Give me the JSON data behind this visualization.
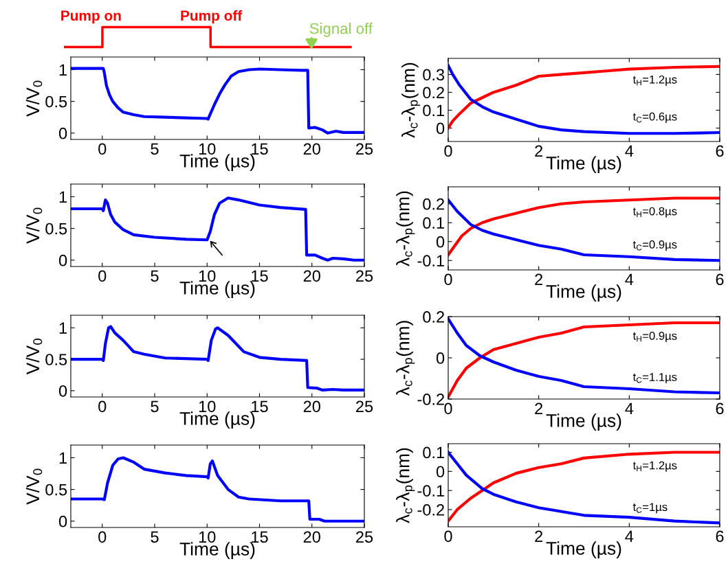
{
  "chart_data": [
    {
      "type": "other",
      "annotations": [
        "Pump on",
        "Pump off"
      ]
    },
    {
      "type": "line",
      "xlabel": "Time (µs)",
      "ylabel": "V/V$_{0}$",
      "xlim": [
        -3,
        25
      ],
      "xticks": [
        0,
        5,
        10,
        15,
        20,
        25
      ],
      "ylim": [
        -0.1,
        1.2
      ],
      "yticks": [
        0,
        0.5,
        1
      ],
      "annotations": [
        "Signal off"
      ],
      "series": [
        {
          "color": "#0000ff",
          "x": [
            -3,
            0.1,
            0.2,
            0.4,
            0.7,
            1,
            1.5,
            2,
            3,
            4,
            6,
            8,
            10,
            10.1,
            10.3,
            10.7,
            11.2,
            11.7,
            12.3,
            13,
            14,
            15,
            17,
            19,
            19.6,
            19.7,
            20.3,
            21,
            21.5,
            22.3,
            23,
            25
          ],
          "values": [
            1.02,
            1.02,
            0.95,
            0.75,
            0.6,
            0.5,
            0.4,
            0.33,
            0.29,
            0.26,
            0.25,
            0.24,
            0.23,
            0.22,
            0.3,
            0.45,
            0.62,
            0.76,
            0.9,
            0.97,
            1.0,
            1.01,
            1.0,
            0.99,
            0.99,
            0.08,
            0.09,
            0.05,
            0.0,
            0.03,
            0.01,
            0.01
          ]
        }
      ]
    },
    {
      "type": "line",
      "xlabel": "Time (µs)",
      "ylabel": "V/V$_{0}$",
      "xlim": [
        -3,
        25
      ],
      "xticks": [
        0,
        5,
        10,
        15,
        20,
        25
      ],
      "ylim": [
        -0.1,
        1.2
      ],
      "yticks": [
        0,
        0.5,
        1
      ],
      "series": [
        {
          "color": "#0000ff",
          "x": [
            -3,
            0,
            0.1,
            0.3,
            0.5,
            0.8,
            1.2,
            2,
            3,
            5,
            8,
            10,
            10.3,
            10.7,
            11.2,
            12,
            13,
            15,
            17,
            19.4,
            19.5,
            20.3,
            21,
            21.5,
            22,
            23,
            24,
            25
          ],
          "values": [
            0.81,
            0.81,
            0.78,
            0.95,
            0.9,
            0.72,
            0.6,
            0.48,
            0.4,
            0.36,
            0.33,
            0.32,
            0.45,
            0.72,
            0.9,
            0.98,
            0.95,
            0.87,
            0.83,
            0.8,
            0.08,
            0.08,
            0.03,
            0.0,
            0.03,
            0.02,
            0.0,
            0.0
          ]
        }
      ]
    },
    {
      "type": "line",
      "xlabel": "Time (µs)",
      "ylabel": "V/V$_{0}$",
      "xlim": [
        -3,
        25
      ],
      "xticks": [
        0,
        5,
        10,
        15,
        20,
        25
      ],
      "ylim": [
        -0.1,
        1.2
      ],
      "yticks": [
        0,
        0.5,
        1
      ],
      "series": [
        {
          "color": "#0000ff",
          "x": [
            -3,
            0,
            0.1,
            0.3,
            0.6,
            0.8,
            1.2,
            2,
            3,
            4,
            6,
            10,
            10.1,
            10.4,
            10.8,
            11,
            12,
            13.5,
            15,
            17,
            19.5,
            19.6,
            20.5,
            21,
            22,
            23,
            25
          ],
          "values": [
            0.5,
            0.5,
            0.48,
            0.75,
            1.0,
            1.02,
            0.92,
            0.8,
            0.62,
            0.58,
            0.52,
            0.5,
            0.48,
            0.8,
            0.98,
            1.0,
            0.88,
            0.62,
            0.53,
            0.5,
            0.48,
            0.05,
            0.04,
            0.01,
            0.02,
            0.01,
            0.01
          ]
        }
      ]
    },
    {
      "type": "line",
      "xlabel": "Time (µs)",
      "ylabel": "V/V$_{0}$",
      "xlim": [
        -3,
        25
      ],
      "xticks": [
        0,
        5,
        10,
        15,
        20,
        25
      ],
      "ylim": [
        -0.1,
        1.2
      ],
      "yticks": [
        0,
        0.5,
        1
      ],
      "series": [
        {
          "color": "#0000ff",
          "x": [
            -3,
            0,
            0.2,
            0.5,
            1,
            1.5,
            2,
            3,
            4,
            6,
            8,
            10,
            10.1,
            10.3,
            10.5,
            11,
            12,
            13,
            14,
            17,
            19.7,
            19.8,
            20.7,
            21.2,
            25
          ],
          "values": [
            0.35,
            0.35,
            0.34,
            0.6,
            0.88,
            0.98,
            1.0,
            0.93,
            0.82,
            0.76,
            0.72,
            0.7,
            0.68,
            0.9,
            0.95,
            0.72,
            0.5,
            0.38,
            0.35,
            0.32,
            0.32,
            0.03,
            0.03,
            0.0,
            0.0
          ]
        }
      ]
    },
    {
      "type": "line",
      "xlabel": "Time (µs)",
      "ylabel": "λ$_{c}$-λ$_{p}$(nm)",
      "xlim": [
        0,
        6
      ],
      "xticks": [
        0,
        2,
        4,
        6
      ],
      "ylim": [
        -0.075,
        0.39
      ],
      "yticks": [
        0,
        0.1,
        0.2,
        0.3
      ],
      "series": [
        {
          "name": "t$_{H}$=1.2µs",
          "color": "#ff0000",
          "x": [
            0,
            0.1,
            0.25,
            0.5,
            0.75,
            1,
            1.5,
            2,
            2.5,
            3,
            3.5,
            4,
            5,
            6
          ],
          "values": [
            0,
            0.04,
            0.08,
            0.14,
            0.17,
            0.2,
            0.24,
            0.29,
            0.3,
            0.31,
            0.32,
            0.33,
            0.34,
            0.345
          ]
        },
        {
          "name": "t$_{C}$=0.6µs",
          "color": "#0000ff",
          "x": [
            0,
            0.1,
            0.25,
            0.5,
            0.75,
            1,
            1.5,
            2,
            2.5,
            3,
            4,
            5,
            6
          ],
          "values": [
            0.35,
            0.3,
            0.24,
            0.16,
            0.12,
            0.09,
            0.05,
            0.01,
            -0.01,
            -0.02,
            -0.03,
            -0.03,
            -0.025
          ]
        }
      ]
    },
    {
      "type": "line",
      "xlabel": "Time (µs)",
      "ylabel": "λ$_{c}$-λ$_{p}$(nm)",
      "xlim": [
        0,
        6
      ],
      "xticks": [
        0,
        2,
        4,
        6
      ],
      "ylim": [
        -0.15,
        0.29
      ],
      "yticks": [
        -0.1,
        0,
        0.1,
        0.2
      ],
      "series": [
        {
          "name": "t$_{H}$=0.8µs",
          "color": "#ff0000",
          "x": [
            0,
            0.15,
            0.3,
            0.5,
            0.75,
            1,
            1.5,
            2,
            2.5,
            3,
            4,
            5,
            6
          ],
          "values": [
            -0.07,
            -0.02,
            0.03,
            0.07,
            0.1,
            0.12,
            0.15,
            0.18,
            0.2,
            0.21,
            0.22,
            0.23,
            0.23
          ]
        },
        {
          "name": "t$_{C}$=0.9µs",
          "color": "#0000ff",
          "x": [
            0,
            0.2,
            0.5,
            0.75,
            1,
            1.5,
            2,
            2.5,
            3,
            4,
            5,
            6
          ],
          "values": [
            0.22,
            0.16,
            0.09,
            0.06,
            0.04,
            0.01,
            -0.02,
            -0.04,
            -0.07,
            -0.08,
            -0.095,
            -0.1
          ]
        }
      ]
    },
    {
      "type": "line",
      "xlabel": "Time (µs)",
      "ylabel": "λ$_{c}$-λ$_{p}$(nm)",
      "xlim": [
        0,
        6
      ],
      "xticks": [
        0,
        2,
        4,
        6
      ],
      "ylim": [
        -0.2,
        0.2
      ],
      "yticks": [
        -0.2,
        0,
        0.2
      ],
      "series": [
        {
          "name": "t$_{H}$=0.9µs",
          "color": "#ff0000",
          "x": [
            0,
            0.2,
            0.4,
            0.7,
            1,
            1.5,
            2,
            2.5,
            3,
            4,
            5,
            6
          ],
          "values": [
            -0.19,
            -0.11,
            -0.05,
            0.0,
            0.04,
            0.07,
            0.1,
            0.12,
            0.15,
            0.16,
            0.17,
            0.17
          ]
        },
        {
          "name": "t$_{C}$=1.1µs",
          "color": "#0000ff",
          "x": [
            0,
            0.2,
            0.4,
            0.7,
            1,
            1.5,
            2,
            2.5,
            3,
            4,
            5,
            6
          ],
          "values": [
            0.19,
            0.12,
            0.06,
            0.01,
            -0.02,
            -0.06,
            -0.09,
            -0.11,
            -0.14,
            -0.15,
            -0.165,
            -0.17
          ]
        }
      ]
    },
    {
      "type": "line",
      "xlabel": "Time (µs)",
      "ylabel": "λ$_{c}$-λ$_{p}$(nm)",
      "xlim": [
        0,
        6
      ],
      "xticks": [
        0,
        2,
        4,
        6
      ],
      "ylim": [
        -0.29,
        0.145
      ],
      "yticks": [
        -0.2,
        -0.1,
        0,
        0.1
      ],
      "series": [
        {
          "name": "t$_{H}$=1.2µs",
          "color": "#ff0000",
          "x": [
            0,
            0.2,
            0.5,
            0.75,
            1,
            1.5,
            2,
            2.5,
            3,
            4,
            5,
            6
          ],
          "values": [
            -0.26,
            -0.2,
            -0.14,
            -0.1,
            -0.06,
            -0.01,
            0.02,
            0.04,
            0.07,
            0.09,
            0.1,
            0.1
          ]
        },
        {
          "name": "t$_{C}$=1µs",
          "color": "#0000ff",
          "x": [
            0,
            0.2,
            0.4,
            0.75,
            1,
            1.5,
            2,
            2.5,
            3,
            4,
            5,
            6
          ],
          "values": [
            0.1,
            0.04,
            -0.02,
            -0.09,
            -0.12,
            -0.16,
            -0.19,
            -0.21,
            -0.23,
            -0.24,
            -0.26,
            -0.27
          ]
        }
      ]
    }
  ]
}
